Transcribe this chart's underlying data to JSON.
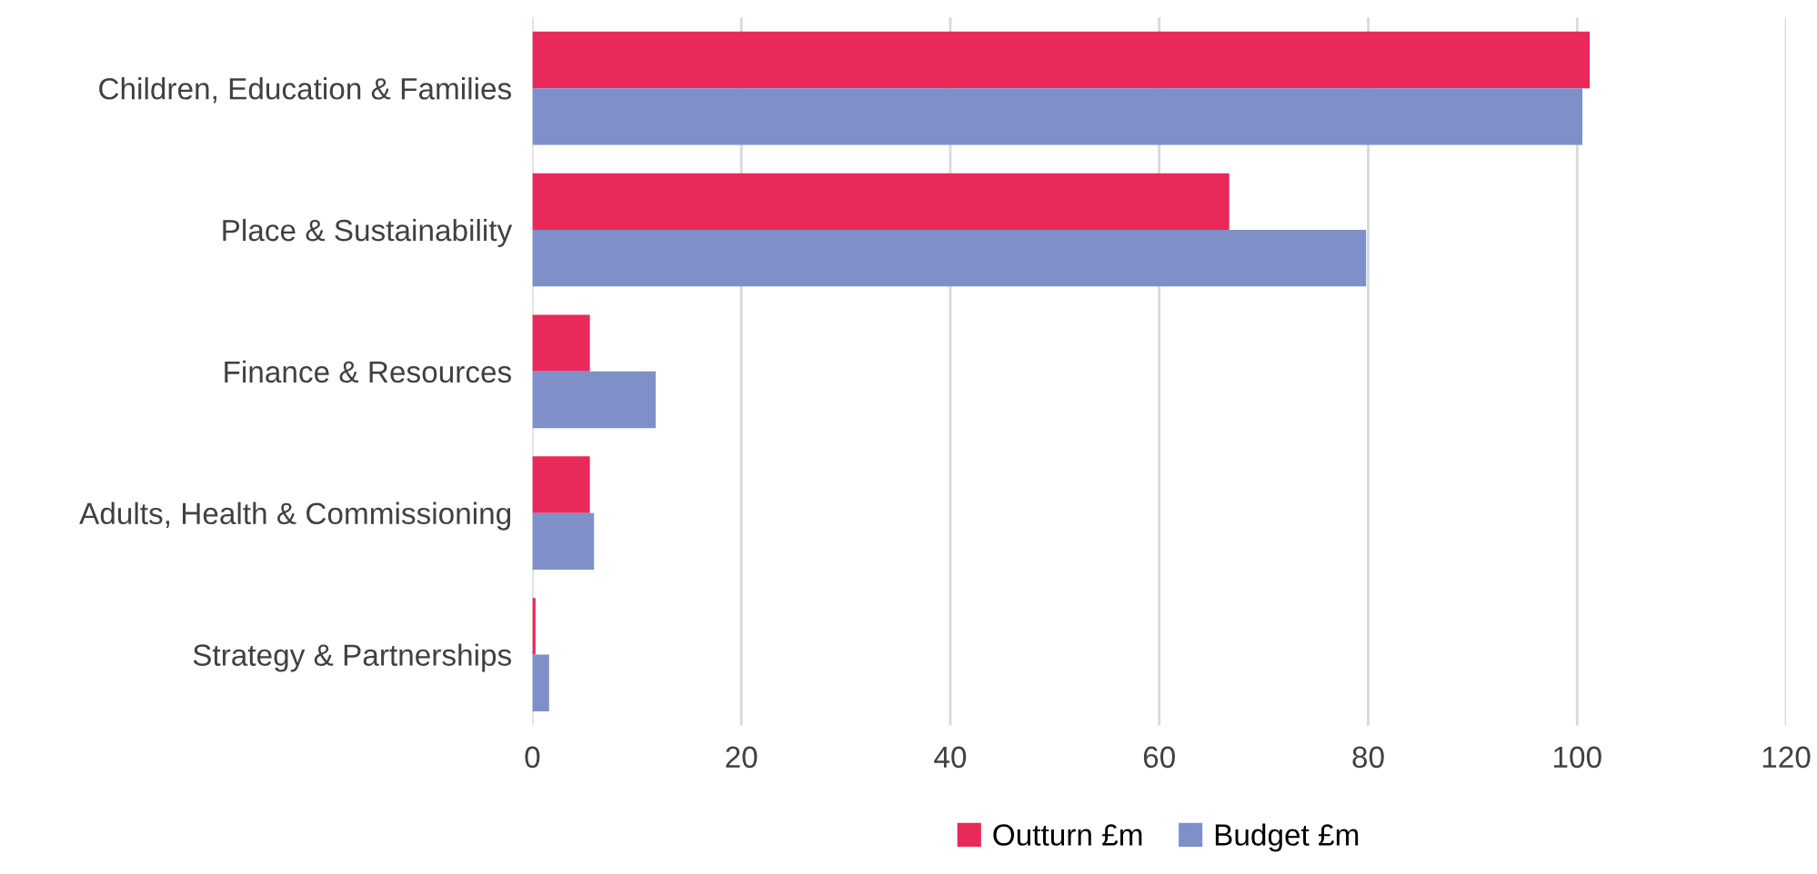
{
  "chart_data": {
    "type": "bar",
    "orientation": "horizontal",
    "categories": [
      "Children, Education & Families",
      "Place & Sustainability",
      "Finance & Resources",
      "Adults, Health & Commissioning",
      "Strategy & Partnerships"
    ],
    "series": [
      {
        "name": "Outturn £m",
        "color": "#e8295a",
        "values": [
          101.2,
          66.7,
          5.5,
          5.5,
          0.3
        ]
      },
      {
        "name": "Budget £m",
        "color": "#7f8fc8",
        "values": [
          100.5,
          79.8,
          11.8,
          5.9,
          1.6
        ]
      }
    ],
    "xlim": [
      0,
      120
    ],
    "xticks": [
      0,
      20,
      40,
      60,
      80,
      100,
      120
    ],
    "grid": "x",
    "legend": "bottom"
  }
}
